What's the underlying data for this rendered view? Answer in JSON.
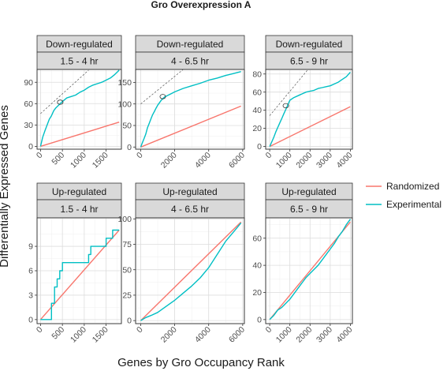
{
  "chart_data": {
    "type": "line",
    "title": "Gro Overexpression A",
    "xlabel": "Genes by Gro Occupancy Rank",
    "ylabel": "Differentially Expressed Genes",
    "grid": true,
    "legend": {
      "placement": "right",
      "entries": [
        {
          "name": "Randomized",
          "color": "#f8766d"
        },
        {
          "name": "Experimental",
          "color": "#00bfc4"
        }
      ]
    },
    "panels": [
      {
        "direction": "Down-regulated",
        "time": "1.5 - 4 hr",
        "xlim": [
          -80,
          1850
        ],
        "ylim": [
          -4,
          108
        ],
        "xticks": [
          0,
          500,
          1000,
          1500
        ],
        "yticks": [
          0,
          30,
          60,
          90
        ],
        "series": [
          {
            "name": "Randomized",
            "x": [
              0,
              1800
            ],
            "y": [
              0,
              34
            ]
          },
          {
            "name": "Experimental",
            "x": [
              0,
              50,
              100,
              150,
              200,
              250,
              300,
              350,
              400,
              450,
              500,
              600,
              700,
              800,
              900,
              1000,
              1100,
              1200,
              1300,
              1400,
              1500,
              1600,
              1700,
              1800
            ],
            "y": [
              0,
              13,
              22,
              30,
              38,
              43,
              50,
              54,
              57,
              60,
              63,
              68,
              70,
              72,
              76,
              79,
              83,
              86,
              88,
              90,
              93,
              96,
              101,
              107
            ]
          }
        ],
        "reference_line": {
          "x": [
            0,
            1100
          ],
          "y": [
            46,
            107
          ]
        },
        "marker": {
          "x": 450,
          "y": 62
        }
      },
      {
        "direction": "Down-regulated",
        "time": "4 - 6.5 hr",
        "xlim": [
          -300,
          6100
        ],
        "ylim": [
          -5,
          180
        ],
        "xticks": [
          0,
          2000,
          4000,
          6000
        ],
        "yticks": [
          0,
          50,
          100,
          150
        ],
        "series": [
          {
            "name": "Randomized",
            "x": [
              0,
              5900
            ],
            "y": [
              0,
              95
            ]
          },
          {
            "name": "Experimental",
            "x": [
              0,
              100,
              200,
              300,
              400,
              500,
              600,
              700,
              800,
              900,
              1000,
              1200,
              1400,
              1600,
              1800,
              2000,
              2500,
              3000,
              3500,
              4000,
              4500,
              5000,
              5500,
              5900
            ],
            "y": [
              0,
              10,
              20,
              30,
              45,
              55,
              65,
              75,
              82,
              90,
              97,
              108,
              116,
              120,
              124,
              128,
              136,
              142,
              148,
              155,
              160,
              166,
              171,
              175
            ]
          }
        ],
        "reference_line": {
          "x": [
            0,
            2500
          ],
          "y": [
            100,
            180
          ]
        },
        "marker": {
          "x": 1300,
          "y": 117
        }
      },
      {
        "direction": "Down-regulated",
        "time": "6.5 - 9 hr",
        "xlim": [
          -200,
          4100
        ],
        "ylim": [
          -3,
          85
        ],
        "xticks": [
          0,
          1000,
          2000,
          3000,
          4000
        ],
        "yticks": [
          0,
          20,
          40,
          60,
          80
        ],
        "series": [
          {
            "name": "Randomized",
            "x": [
              0,
              4000
            ],
            "y": [
              0,
              44
            ]
          },
          {
            "name": "Experimental",
            "x": [
              0,
              100,
              200,
              300,
              400,
              500,
              600,
              700,
              800,
              900,
              1000,
              1200,
              1400,
              1600,
              1800,
              2000,
              2200,
              2400,
              2600,
              2800,
              3000,
              3200,
              3400,
              3600,
              3800,
              4000
            ],
            "y": [
              0,
              5,
              10,
              16,
              21,
              26,
              31,
              36,
              41,
              46,
              51,
              54,
              56,
              58,
              60,
              61,
              62,
              64,
              65,
              66,
              67,
              69,
              71,
              74,
              77,
              82
            ]
          }
        ],
        "reference_line": {
          "x": [
            0,
            1900
          ],
          "y": [
            34,
            85
          ]
        },
        "marker": {
          "x": 800,
          "y": 45
        }
      },
      {
        "direction": "Up-regulated",
        "time": "1.5 - 4 hr",
        "xlim": [
          -80,
          1850
        ],
        "ylim": [
          -0.5,
          12.5
        ],
        "xticks": [
          0,
          500,
          1000,
          1500
        ],
        "yticks": [
          0,
          3,
          6,
          9
        ],
        "series": [
          {
            "name": "Randomized",
            "x": [
              0,
              1800
            ],
            "y": [
              0,
              11
            ]
          },
          {
            "name": "Experimental",
            "x": [
              0,
              150,
              250,
              250,
              320,
              320,
              380,
              380,
              440,
              440,
              500,
              500,
              620,
              620,
              1100,
              1100,
              1150,
              1150,
              1500,
              1500,
              1650,
              1650,
              1800
            ],
            "y": [
              0,
              0,
              0,
              2,
              2,
              4,
              4,
              5,
              5,
              6,
              6,
              7,
              7,
              7,
              7,
              8,
              8,
              9,
              9,
              10,
              10,
              11,
              11
            ]
          }
        ]
      },
      {
        "direction": "Up-regulated",
        "time": "4 - 6.5 hr",
        "xlim": [
          -300,
          6100
        ],
        "ylim": [
          -3,
          101
        ],
        "xticks": [
          0,
          2000,
          4000,
          6000
        ],
        "yticks": [
          0,
          25,
          50,
          75,
          100
        ],
        "series": [
          {
            "name": "Randomized",
            "x": [
              0,
              5900
            ],
            "y": [
              0,
              97
            ]
          },
          {
            "name": "Experimental",
            "x": [
              0,
              300,
              600,
              1000,
              1500,
              2000,
              2500,
              3000,
              3500,
              4000,
              4500,
              5000,
              5500,
              5900
            ],
            "y": [
              0,
              3,
              5,
              8,
              14,
              20,
              27,
              34,
              42,
              52,
              65,
              78,
              88,
              96
            ]
          }
        ]
      },
      {
        "direction": "Up-regulated",
        "time": "6.5 - 9 hr",
        "xlim": [
          -200,
          4100
        ],
        "ylim": [
          -3,
          75
        ],
        "xticks": [
          0,
          1000,
          2000,
          3000,
          4000
        ],
        "yticks": [
          0,
          20,
          40,
          60
        ],
        "series": [
          {
            "name": "Randomized",
            "x": [
              0,
              4000
            ],
            "y": [
              0,
              72
            ]
          },
          {
            "name": "Experimental",
            "x": [
              0,
              200,
              400,
              600,
              800,
              1000,
              1200,
              1400,
              1600,
              1800,
              2000,
              2200,
              2400,
              2600,
              2800,
              3000,
              3200,
              3400,
              3600,
              3800,
              4000
            ],
            "y": [
              0,
              3,
              7,
              9,
              12,
              15,
              19,
              23,
              27,
              31,
              34,
              37,
              40,
              44,
              48,
              52,
              56,
              61,
              65,
              70,
              74
            ]
          }
        ]
      }
    ]
  }
}
